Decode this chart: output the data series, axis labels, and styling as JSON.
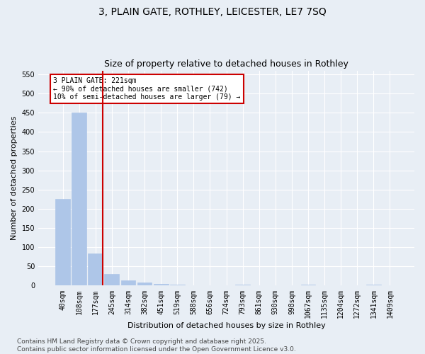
{
  "title1": "3, PLAIN GATE, ROTHLEY, LEICESTER, LE7 7SQ",
  "title2": "Size of property relative to detached houses in Rothley",
  "xlabel": "Distribution of detached houses by size in Rothley",
  "ylabel": "Number of detached properties",
  "categories": [
    "40sqm",
    "108sqm",
    "177sqm",
    "245sqm",
    "314sqm",
    "382sqm",
    "451sqm",
    "519sqm",
    "588sqm",
    "656sqm",
    "724sqm",
    "793sqm",
    "861sqm",
    "930sqm",
    "998sqm",
    "1067sqm",
    "1135sqm",
    "1204sqm",
    "1272sqm",
    "1341sqm",
    "1409sqm"
  ],
  "values": [
    225,
    450,
    83,
    30,
    13,
    8,
    5,
    2,
    0,
    0,
    0,
    2,
    0,
    0,
    0,
    3,
    0,
    0,
    0,
    3,
    0
  ],
  "bar_color": "#aec6e8",
  "bar_edge_color": "#aec6e8",
  "vline_color": "#cc0000",
  "annotation_text": "3 PLAIN GATE: 221sqm\n← 90% of detached houses are smaller (742)\n10% of semi-detached houses are larger (79) →",
  "annotation_box_color": "#cc0000",
  "ylim": [
    0,
    560
  ],
  "yticks": [
    0,
    50,
    100,
    150,
    200,
    250,
    300,
    350,
    400,
    450,
    500,
    550
  ],
  "footnote": "Contains HM Land Registry data © Crown copyright and database right 2025.\nContains public sector information licensed under the Open Government Licence v3.0.",
  "background_color": "#e8eef5",
  "plot_background_color": "#e8eef5",
  "title_fontsize": 10,
  "subtitle_fontsize": 9,
  "axis_label_fontsize": 8,
  "tick_fontsize": 7,
  "footnote_fontsize": 6.5
}
